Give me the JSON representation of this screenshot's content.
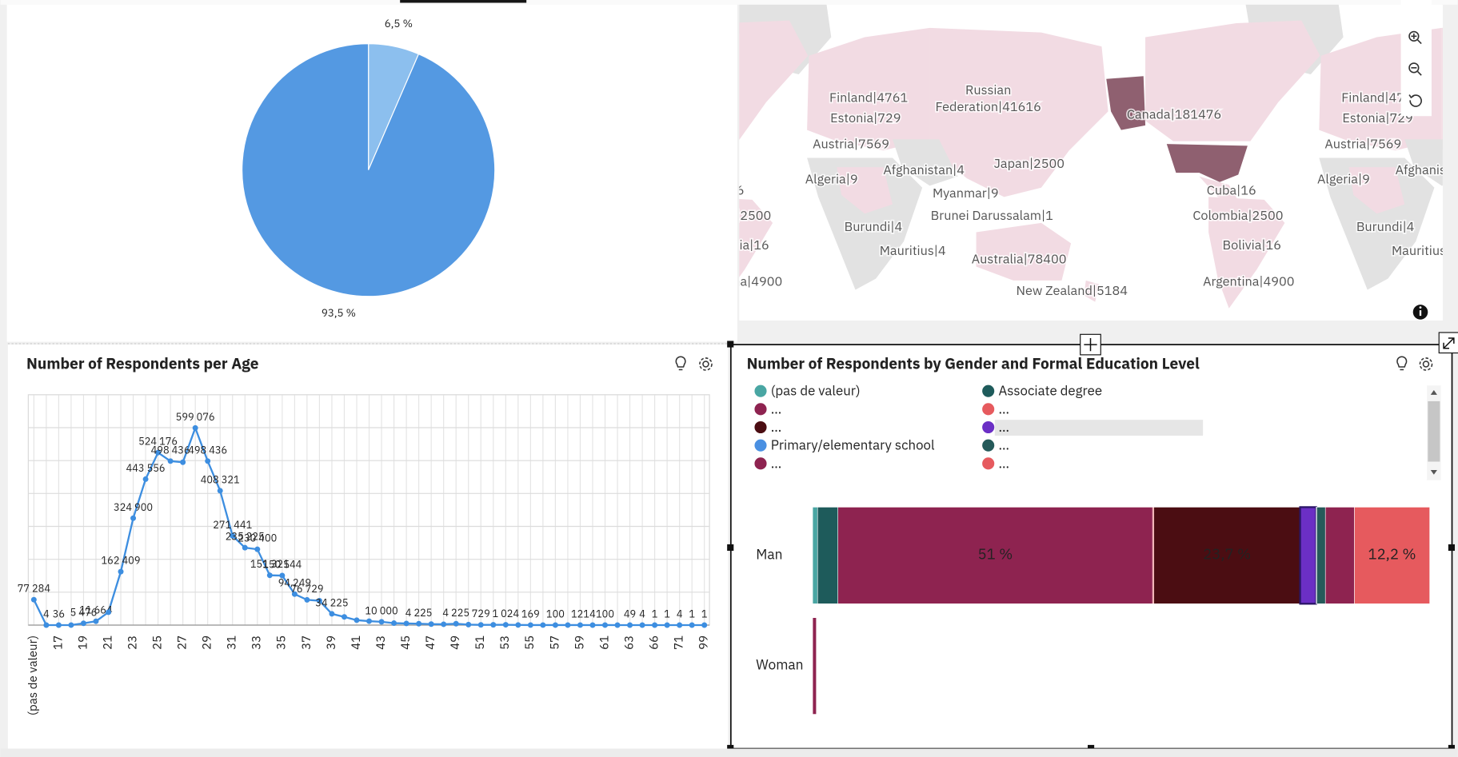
{
  "chart_data": [
    {
      "type": "pie",
      "values": [
        6.5,
        93.5
      ],
      "value_labels": [
        "6,5 %",
        "93,5 %"
      ],
      "colors": [
        "#8cbfee",
        "#5499e2"
      ]
    },
    {
      "type": "line",
      "title": "Number of Respondents per Age",
      "categories": [
        "(pas de valeur)",
        null,
        "17",
        null,
        "19",
        null,
        "21",
        null,
        "23",
        null,
        "25",
        null,
        "27",
        null,
        "29",
        null,
        "31",
        null,
        "33",
        null,
        "35",
        null,
        "37",
        null,
        "39",
        null,
        "41",
        null,
        "43",
        null,
        "45",
        null,
        "47",
        null,
        "49",
        null,
        "51",
        null,
        "53",
        null,
        "55",
        null,
        "57",
        null,
        "59",
        null,
        "61",
        null,
        "63",
        null,
        "66",
        null,
        "71",
        null,
        "99"
      ],
      "values": [
        77284,
        4,
        36,
        100,
        5476,
        11664,
        39000,
        162409,
        324900,
        443556,
        524176,
        498436,
        495000,
        599076,
        498436,
        408321,
        271441,
        235225,
        230400,
        151321,
        150544,
        94249,
        76729,
        74000,
        34225,
        25000,
        15000,
        12000,
        10000,
        6000,
        5000,
        4225,
        3000,
        2500,
        4225,
        1500,
        729,
        900,
        1024,
        400,
        169,
        150,
        100,
        100,
        121,
        4,
        100,
        50,
        49,
        4,
        1,
        1,
        4,
        1,
        1
      ],
      "value_labels": [
        "77 284",
        "4",
        "36",
        null,
        "5 476",
        "11 664",
        null,
        "162 409",
        "324 900",
        "443 556",
        "524 176",
        "498 436",
        null,
        "599 076",
        "498 436",
        "408 321",
        "271 441",
        "235 225",
        "230 400",
        "151 321",
        "150 544",
        "94 249",
        "76 729",
        null,
        "34 225",
        null,
        null,
        null,
        "10 000",
        null,
        null,
        "4 225",
        null,
        null,
        "4 225",
        null,
        "729",
        null,
        "1 024",
        null,
        "169",
        null,
        "100",
        null,
        "121",
        "4",
        "100",
        null,
        "49",
        "4",
        "1",
        "1",
        "4",
        "1",
        "1"
      ],
      "color": "#3d8ee0",
      "ylim": [
        0,
        700000
      ],
      "yticks": [
        0,
        100000,
        200000,
        300000,
        400000,
        500000,
        600000,
        700000
      ],
      "grid": true
    },
    {
      "type": "bar",
      "orientation": "horizontal",
      "stacked": true,
      "title": "Number of Respondents by Gender and Formal Education Level",
      "categories": [
        "Man",
        "Woman"
      ],
      "xlim": [
        0,
        100
      ],
      "legend": "top",
      "series": [
        {
          "name": "(pas de valeur)",
          "color": "#49a6a3",
          "values": [
            0.8,
            0
          ]
        },
        {
          "name": "Associate degree",
          "color": "#1e5b5b",
          "values": [
            3.3,
            0
          ]
        },
        {
          "name": "…",
          "color": "#8e2350",
          "values": [
            51,
            0.6
          ],
          "value_labels": [
            "51 %",
            null
          ]
        },
        {
          "name": "…",
          "color": "#e65a5e",
          "values": [
            0.2,
            0
          ]
        },
        {
          "name": "…",
          "color": "#4b0d12",
          "values": [
            23.7,
            0
          ],
          "value_labels": [
            "23,7 %",
            null
          ]
        },
        {
          "name": "…",
          "color": "#6b2fc5",
          "values": [
            2.6,
            0
          ]
        },
        {
          "name": "Primary/elementary school",
          "color": "#4a90e2",
          "values": [
            0.1,
            0
          ]
        },
        {
          "name": "…",
          "color": "#255a5a",
          "values": [
            1.4,
            0
          ]
        },
        {
          "name": "…",
          "color": "#8e2350",
          "values": [
            4.7,
            0
          ]
        },
        {
          "name": "…",
          "color": "#e65a5e",
          "values": [
            12.2,
            0
          ],
          "value_labels": [
            "12,2 %",
            null
          ]
        }
      ]
    }
  ],
  "map": {
    "labels": [
      "Finland|4761",
      "Estonia|729",
      "Russian Federation|41616",
      "Austria|7569",
      "Afghanistan|4",
      "Japan|2500",
      "Algeria|9",
      "Myanmar|9",
      "Brunei Darussalam|1",
      "Burundi|4",
      "Mauritius|4",
      "Australia|78400",
      "New Zealand|5184",
      "Canada|181476",
      "Cuba|16",
      "Colombia|2500",
      "Bolivia|16",
      "Argentina|4900"
    ]
  }
}
